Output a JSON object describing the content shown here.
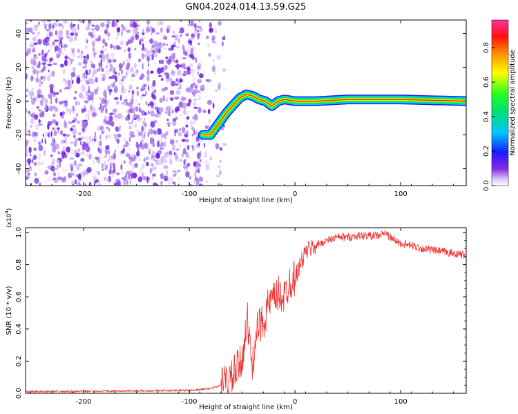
{
  "title": "GN04.2024.014.13.59.G25",
  "chart_data": [
    {
      "type": "heatmap",
      "name": "spectrogram",
      "xlabel": "Height of straight line (km)",
      "ylabel": "Frequency (Hz)",
      "xlim": [
        -255,
        162
      ],
      "ylim": [
        -50,
        48
      ],
      "xticks": [
        -200,
        -100,
        0,
        100
      ],
      "yticks": [
        -40,
        -20,
        0,
        20,
        40
      ],
      "noise_region_x": [
        -255,
        -75
      ],
      "ridge": {
        "x": [
          -87,
          -80,
          -72,
          -65,
          -58,
          -52,
          -46,
          -40,
          -34,
          -28,
          -22,
          -16,
          -10,
          0,
          20,
          50,
          100,
          162
        ],
        "y": [
          -20,
          -20,
          -13,
          -7,
          -2,
          2,
          4,
          3,
          1,
          0,
          -3,
          0,
          1,
          0,
          0,
          1,
          1,
          0
        ]
      },
      "colorbar": {
        "label": "Normalized spectral amplitude",
        "ticks": [
          "0.0",
          "0.2",
          "0.4",
          "0.6",
          "0.8"
        ],
        "range": [
          0,
          0.96
        ]
      }
    },
    {
      "type": "line",
      "name": "snr",
      "xlabel": "Height of straight line (km)",
      "ylabel": "SNR (10 * v/v)",
      "multiplier": "(x10",
      "multiplier_exp": "4",
      "multiplier_close": ")",
      "xlim": [
        -255,
        162
      ],
      "ylim": [
        0,
        1.03
      ],
      "xticks": [
        -200,
        -100,
        0,
        100
      ],
      "yticks": [
        "0.0",
        "0.2",
        "0.4",
        "0.6",
        "0.8",
        "1.0"
      ],
      "color": "#ee3333",
      "series": [
        {
          "name": "SNR",
          "x": [
            -255,
            -200,
            -150,
            -100,
            -80,
            -70,
            -60,
            -55,
            -50,
            -48,
            -45,
            -42,
            -40,
            -38,
            -35,
            -30,
            -25,
            -20,
            -15,
            -10,
            -5,
            0,
            5,
            10,
            20,
            30,
            40,
            50,
            60,
            70,
            80,
            85,
            90,
            95,
            100,
            110,
            120,
            130,
            140,
            150,
            162
          ],
          "y": [
            0.01,
            0.012,
            0.015,
            0.018,
            0.03,
            0.05,
            0.09,
            0.15,
            0.2,
            0.35,
            0.45,
            0.25,
            0.15,
            0.35,
            0.4,
            0.45,
            0.55,
            0.58,
            0.62,
            0.6,
            0.7,
            0.72,
            0.8,
            0.88,
            0.92,
            0.95,
            0.97,
            0.97,
            0.98,
            0.98,
            0.98,
            1.0,
            0.97,
            0.95,
            0.93,
            0.92,
            0.9,
            0.89,
            0.88,
            0.87,
            0.86
          ]
        }
      ]
    }
  ]
}
